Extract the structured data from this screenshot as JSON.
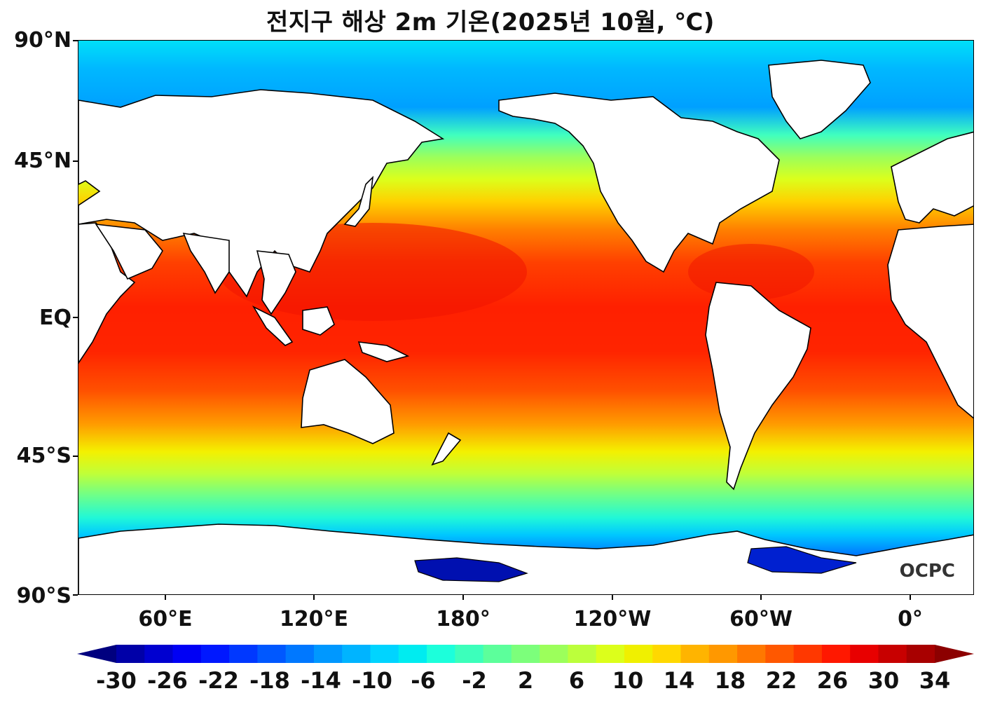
{
  "title": "전지구 해상 2m 기온(2025년 10월, ℃)",
  "lat_labels": [
    "90°N",
    "45°N",
    "EQ",
    "45°S",
    "90°S"
  ],
  "lon_labels": [
    "60°E",
    "120°E",
    "180°",
    "120°W",
    "60°W",
    "0°"
  ],
  "logo": "OCPC",
  "colorbar": {
    "labels": [
      "-30",
      "-26",
      "-22",
      "-18",
      "-14",
      "-10",
      "-6",
      "-2",
      "2",
      "6",
      "10",
      "14",
      "18",
      "22",
      "26",
      "30",
      "34"
    ],
    "colors": [
      "#00007f",
      "#0000a8",
      "#0000d0",
      "#0000f5",
      "#0018ff",
      "#0038ff",
      "#0058ff",
      "#0078ff",
      "#0098ff",
      "#00b4ff",
      "#00d4ff",
      "#00ecf0",
      "#1cffdb",
      "#3cffbb",
      "#5cff9b",
      "#7cff7b",
      "#9cff5b",
      "#bcff3b",
      "#dcff1b",
      "#f0f000",
      "#ffd800",
      "#ffb400",
      "#ff9800",
      "#ff7800",
      "#ff5800",
      "#ff3800",
      "#ff1800",
      "#e80000",
      "#c80000",
      "#a80000",
      "#8c0000"
    ]
  }
}
